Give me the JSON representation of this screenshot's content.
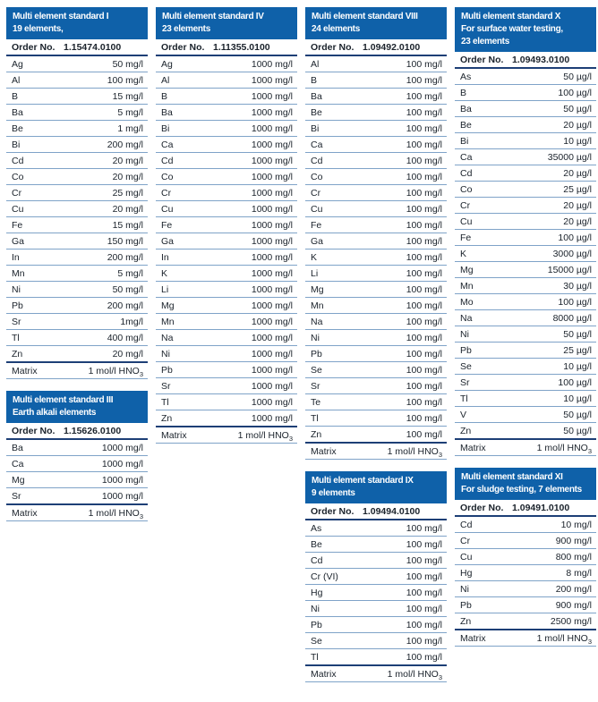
{
  "colors": {
    "header_bg": "#0f61a9",
    "header_text": "#ffffff",
    "rule_light": "#7fa3c8",
    "rule_dark": "#1d3f76",
    "text": "#1a222b",
    "page_bg": "#ffffff"
  },
  "columns": [
    {
      "tables": [
        {
          "name": "multi-element-standard-i",
          "title_lines": [
            "Multi element standard I",
            "19 elements,"
          ],
          "order_label": "Order No.",
          "order_no": "1.15474.0100",
          "rows": [
            {
              "el": "Ag",
              "val": "50 mg/l"
            },
            {
              "el": "Al",
              "val": "100 mg/l"
            },
            {
              "el": "B",
              "val": "15 mg/l"
            },
            {
              "el": "Ba",
              "val": "5 mg/l"
            },
            {
              "el": "Be",
              "val": "1 mg/l"
            },
            {
              "el": "Bi",
              "val": "200 mg/l"
            },
            {
              "el": "Cd",
              "val": "20 mg/l"
            },
            {
              "el": "Co",
              "val": "20 mg/l"
            },
            {
              "el": "Cr",
              "val": "25 mg/l"
            },
            {
              "el": "Cu",
              "val": "20 mg/l"
            },
            {
              "el": "Fe",
              "val": "15 mg/l"
            },
            {
              "el": "Ga",
              "val": "150 mg/l"
            },
            {
              "el": "In",
              "val": "200 mg/l"
            },
            {
              "el": "Mn",
              "val": "5 mg/l"
            },
            {
              "el": "Ni",
              "val": "50 mg/l"
            },
            {
              "el": "Pb",
              "val": "200 mg/l"
            },
            {
              "el": "Sr",
              "val": "1mg/l"
            },
            {
              "el": "Tl",
              "val": "400 mg/l"
            },
            {
              "el": "Zn",
              "val": "20 mg/l"
            }
          ],
          "matrix": {
            "label": "Matrix",
            "value": "1 mol/l HNO",
            "sub": "3"
          }
        },
        {
          "name": "multi-element-standard-iii",
          "title_lines": [
            "Multi element standard III",
            "Earth alkali elements"
          ],
          "order_label": "Order No.",
          "order_no": "1.15626.0100",
          "rows": [
            {
              "el": "Ba",
              "val": "1000 mg/l"
            },
            {
              "el": "Ca",
              "val": "1000 mg/l"
            },
            {
              "el": "Mg",
              "val": "1000 mg/l"
            },
            {
              "el": "Sr",
              "val": "1000 mg/l"
            }
          ],
          "matrix": {
            "label": "Matrix",
            "value": "1 mol/l HNO",
            "sub": "3"
          }
        }
      ]
    },
    {
      "tables": [
        {
          "name": "multi-element-standard-iv",
          "title_lines": [
            "Multi element standard IV",
            "23 elements"
          ],
          "order_label": "Order No.",
          "order_no": "1.11355.0100",
          "rows": [
            {
              "el": "Ag",
              "val": "1000 mg/l"
            },
            {
              "el": "Al",
              "val": "1000 mg/l"
            },
            {
              "el": "B",
              "val": "1000 mg/l"
            },
            {
              "el": "Ba",
              "val": "1000 mg/l"
            },
            {
              "el": "Bi",
              "val": "1000 mg/l"
            },
            {
              "el": "Ca",
              "val": "1000 mg/l"
            },
            {
              "el": "Cd",
              "val": "1000 mg/l"
            },
            {
              "el": "Co",
              "val": "1000 mg/l"
            },
            {
              "el": "Cr",
              "val": "1000 mg/l"
            },
            {
              "el": "Cu",
              "val": "1000 mg/l"
            },
            {
              "el": "Fe",
              "val": "1000 mg/l"
            },
            {
              "el": "Ga",
              "val": "1000 mg/l"
            },
            {
              "el": "In",
              "val": "1000 mg/l"
            },
            {
              "el": "K",
              "val": "1000 mg/l"
            },
            {
              "el": "Li",
              "val": "1000 mg/l"
            },
            {
              "el": "Mg",
              "val": "1000 mg/l"
            },
            {
              "el": "Mn",
              "val": "1000 mg/l"
            },
            {
              "el": "Na",
              "val": "1000 mg/l"
            },
            {
              "el": "Ni",
              "val": "1000 mg/l"
            },
            {
              "el": "Pb",
              "val": "1000 mg/l"
            },
            {
              "el": "Sr",
              "val": "1000 mg/l"
            },
            {
              "el": "Tl",
              "val": "1000 mg/l"
            },
            {
              "el": "Zn",
              "val": "1000 mg/l"
            }
          ],
          "matrix": {
            "label": "Matrix",
            "value": "1 mol/l HNO",
            "sub": "3"
          }
        }
      ]
    },
    {
      "tables": [
        {
          "name": "multi-element-standard-viii",
          "title_lines": [
            "Multi element standard VIII",
            "24 elements"
          ],
          "order_label": "Order No.",
          "order_no": "1.09492.0100",
          "rows": [
            {
              "el": "Al",
              "val": "100 mg/l"
            },
            {
              "el": "B",
              "val": "100 mg/l"
            },
            {
              "el": "Ba",
              "val": "100 mg/l"
            },
            {
              "el": "Be",
              "val": "100 mg/l"
            },
            {
              "el": "Bi",
              "val": "100 mg/l"
            },
            {
              "el": "Ca",
              "val": "100 mg/l"
            },
            {
              "el": "Cd",
              "val": "100 mg/l"
            },
            {
              "el": "Co",
              "val": "100 mg/l"
            },
            {
              "el": "Cr",
              "val": "100 mg/l"
            },
            {
              "el": "Cu",
              "val": "100 mg/l"
            },
            {
              "el": "Fe",
              "val": "100 mg/l"
            },
            {
              "el": "Ga",
              "val": "100 mg/l"
            },
            {
              "el": "K",
              "val": "100 mg/l"
            },
            {
              "el": "Li",
              "val": "100 mg/l"
            },
            {
              "el": "Mg",
              "val": "100 mg/l"
            },
            {
              "el": "Mn",
              "val": "100 mg/l"
            },
            {
              "el": "Na",
              "val": "100 mg/l"
            },
            {
              "el": "Ni",
              "val": "100 mg/l"
            },
            {
              "el": "Pb",
              "val": "100 mg/l"
            },
            {
              "el": "Se",
              "val": "100 mg/l"
            },
            {
              "el": "Sr",
              "val": "100 mg/l"
            },
            {
              "el": "Te",
              "val": "100 mg/l"
            },
            {
              "el": "Tl",
              "val": "100 mg/l"
            },
            {
              "el": "Zn",
              "val": "100 mg/l"
            }
          ],
          "matrix": {
            "label": "Matrix",
            "value": "1 mol/l HNO",
            "sub": "3"
          }
        },
        {
          "name": "multi-element-standard-ix",
          "title_lines": [
            "Multi element standard IX",
            "9 elements"
          ],
          "order_label": "Order No.",
          "order_no": "1.09494.0100",
          "rows": [
            {
              "el": "As",
              "val": "100 mg/l"
            },
            {
              "el": "Be",
              "val": "100 mg/l"
            },
            {
              "el": "Cd",
              "val": "100 mg/l"
            },
            {
              "el": "Cr (VI)",
              "val": "100 mg/l"
            },
            {
              "el": "Hg",
              "val": "100 mg/l"
            },
            {
              "el": "Ni",
              "val": "100 mg/l"
            },
            {
              "el": "Pb",
              "val": "100 mg/l"
            },
            {
              "el": "Se",
              "val": "100 mg/l"
            },
            {
              "el": "Tl",
              "val": "100 mg/l"
            }
          ],
          "matrix": {
            "label": "Matrix",
            "value": "1 mol/l HNO",
            "sub": "3"
          }
        }
      ]
    },
    {
      "tables": [
        {
          "name": "multi-element-standard-x",
          "title_lines": [
            "Multi element standard X",
            "For surface water testing,",
            "23 elements"
          ],
          "order_label": "Order No.",
          "order_no": "1.09493.0100",
          "rows": [
            {
              "el": "As",
              "val": "50 µg/l"
            },
            {
              "el": "B",
              "val": "100 µg/l"
            },
            {
              "el": "Ba",
              "val": "50 µg/l"
            },
            {
              "el": "Be",
              "val": "20 µg/l"
            },
            {
              "el": "Bi",
              "val": "10 µg/l"
            },
            {
              "el": "Ca",
              "val": "35000 µg/l"
            },
            {
              "el": "Cd",
              "val": "20 µg/l"
            },
            {
              "el": "Co",
              "val": "25 µg/l"
            },
            {
              "el": "Cr",
              "val": "20 µg/l"
            },
            {
              "el": "Cu",
              "val": "20 µg/l"
            },
            {
              "el": "Fe",
              "val": "100 µg/l"
            },
            {
              "el": "K",
              "val": "3000 µg/l"
            },
            {
              "el": "Mg",
              "val": "15000 µg/l"
            },
            {
              "el": "Mn",
              "val": "30 µg/l"
            },
            {
              "el": "Mo",
              "val": "100 µg/l"
            },
            {
              "el": "Na",
              "val": "8000 µg/l"
            },
            {
              "el": "Ni",
              "val": "50 µg/l"
            },
            {
              "el": "Pb",
              "val": "25 µg/l"
            },
            {
              "el": "Se",
              "val": "10 µg/l"
            },
            {
              "el": "Sr",
              "val": "100 µg/l"
            },
            {
              "el": "Tl",
              "val": "10 µg/l"
            },
            {
              "el": "V",
              "val": "50 µg/l"
            },
            {
              "el": "Zn",
              "val": "50 µg/l"
            }
          ],
          "matrix": {
            "label": "Matrix",
            "value": "1 mol/l HNO",
            "sub": "3"
          }
        },
        {
          "name": "multi-element-standard-xi",
          "title_lines": [
            "Multi element standard XI",
            "For sludge testing, 7 elements"
          ],
          "order_label": "Order No.",
          "order_no": "1.09491.0100",
          "rows": [
            {
              "el": "Cd",
              "val": "10 mg/l"
            },
            {
              "el": "Cr",
              "val": "900 mg/l"
            },
            {
              "el": "Cu",
              "val": "800 mg/l"
            },
            {
              "el": "Hg",
              "val": "8 mg/l"
            },
            {
              "el": "Ni",
              "val": "200 mg/l"
            },
            {
              "el": "Pb",
              "val": "900 mg/l"
            },
            {
              "el": "Zn",
              "val": "2500 mg/l"
            }
          ],
          "matrix": {
            "label": "Matrix",
            "value": "1 mol/l HNO",
            "sub": "3"
          }
        }
      ]
    }
  ]
}
